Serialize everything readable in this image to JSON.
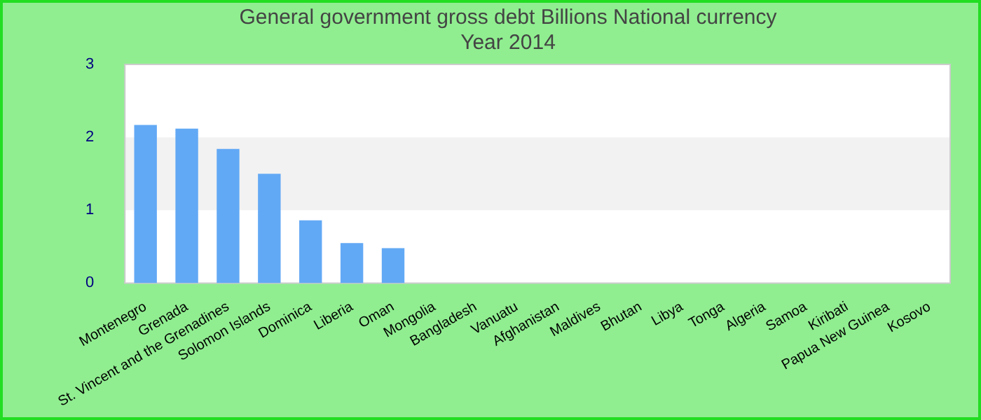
{
  "chart_data": {
    "type": "bar",
    "title": "General government gross debt Billions National currency",
    "subtitle": "Year 2014",
    "categories": [
      "Montenegro",
      "Grenada",
      "St. Vincent and the Grenadines",
      "Solomon Islands",
      "Dominica",
      "Liberia",
      "Oman",
      "Mongolia",
      "Bangladesh",
      "Vanuatu",
      "Afghanistan",
      "Maldives",
      "Bhutan",
      "Libya",
      "Tonga",
      "Algeria",
      "Samoa",
      "Kiribati",
      "Papua New Guinea",
      "Kosovo"
    ],
    "values": [
      2.17,
      2.12,
      1.84,
      1.5,
      0.86,
      0.55,
      0.48,
      0,
      0,
      0,
      0,
      0,
      0,
      0,
      0,
      0,
      0,
      0,
      0,
      0
    ],
    "color": "#62a9f5",
    "ylim": [
      0,
      3
    ],
    "yticks": [
      0,
      1,
      2,
      3
    ],
    "bands": [
      {
        "axis": "y",
        "from": 1,
        "to": 2,
        "color": "#f2f2f2"
      }
    ],
    "legend": false
  }
}
